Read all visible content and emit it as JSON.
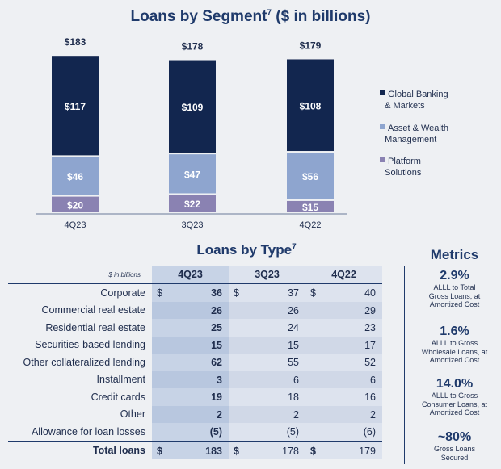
{
  "chart_data": [
    {
      "type": "bar",
      "title": "Loans by Segment",
      "title_superscript": "7",
      "title_suffix": "($ in billions)",
      "categories": [
        "4Q23",
        "3Q23",
        "4Q22"
      ],
      "totals": [
        "$183",
        "$178",
        "$179"
      ],
      "series": [
        {
          "name": "Global Banking & Markets",
          "values": [
            117,
            109,
            108
          ],
          "labels": [
            "$117",
            "$109",
            "$108"
          ],
          "color": "#12264f"
        },
        {
          "name": "Asset & Wealth Management",
          "values": [
            46,
            47,
            56
          ],
          "labels": [
            "$46",
            "$47",
            "$56"
          ],
          "color": "#8ea5cf"
        },
        {
          "name": "Platform Solutions",
          "values": [
            20,
            22,
            15
          ],
          "labels": [
            "$20",
            "$22",
            "$15"
          ],
          "color": "#8a82b2"
        }
      ],
      "stacked": true,
      "legend_placement": "right"
    },
    {
      "type": "table",
      "title": "Loans by Type",
      "title_superscript": "7",
      "unit_note": "$ in billions",
      "columns": [
        "4Q23",
        "3Q23",
        "4Q22"
      ],
      "rows": [
        {
          "label": "Corporate",
          "values": [
            "36",
            "37",
            "40"
          ],
          "dollar": true
        },
        {
          "label": "Commercial real estate",
          "values": [
            "26",
            "26",
            "29"
          ]
        },
        {
          "label": "Residential real estate",
          "values": [
            "25",
            "24",
            "23"
          ]
        },
        {
          "label": "Securities-based lending",
          "values": [
            "15",
            "15",
            "17"
          ]
        },
        {
          "label": "Other collateralized lending",
          "values": [
            "62",
            "55",
            "52"
          ]
        },
        {
          "label": "Installment",
          "values": [
            "3",
            "6",
            "6"
          ]
        },
        {
          "label": "Credit cards",
          "values": [
            "19",
            "18",
            "16"
          ]
        },
        {
          "label": "Other",
          "values": [
            "2",
            "2",
            "2"
          ]
        },
        {
          "label": "Allowance for loan losses",
          "values": [
            "(5)",
            "(5)",
            "(6)"
          ]
        }
      ],
      "total": {
        "label": "Total loans",
        "values": [
          "183",
          "178",
          "179"
        ]
      }
    }
  ],
  "metrics": {
    "title": "Metrics",
    "items": [
      {
        "value": "2.9%",
        "desc": [
          "ALLL to Total",
          "Gross Loans, at",
          "Amortized Cost"
        ]
      },
      {
        "value": "1.6%",
        "desc": [
          "ALLL to Gross",
          "Wholesale Loans, at",
          "Amortized Cost"
        ]
      },
      {
        "value": "14.0%",
        "desc": [
          "ALLL to Gross",
          "Consumer Loans, at",
          "Amortized Cost"
        ]
      },
      {
        "value": "~80%",
        "desc": [
          "Gross Loans",
          "Secured"
        ]
      }
    ]
  }
}
